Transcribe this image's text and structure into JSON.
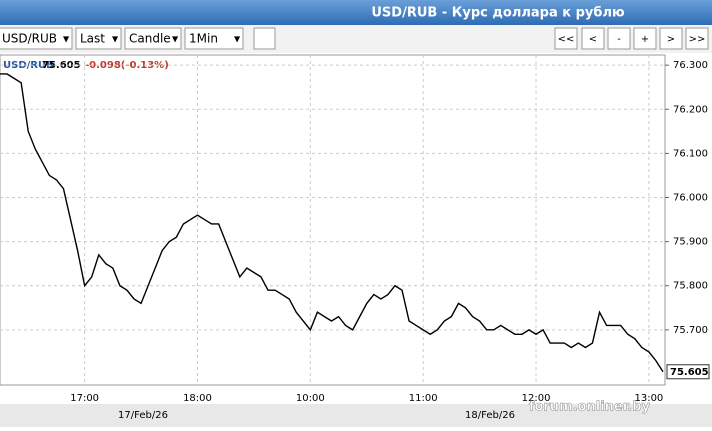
{
  "header": {
    "title": "USD/RUB - Курс доллара к рублю"
  },
  "toolbar": {
    "selects": [
      "USD/RUB",
      "Last",
      "Candle",
      "1Min"
    ],
    "buttons": [
      "<<",
      "<",
      "-",
      "+",
      ">",
      ">>"
    ]
  },
  "watermark": "forum.onliner.by",
  "chart_data": {
    "type": "line",
    "symbol": "USD/RUB",
    "last": 75.605,
    "change": "-0.098(-0.13%)",
    "categories": [
      null,
      null,
      null,
      null,
      null,
      null,
      null,
      null,
      null,
      null,
      null,
      null,
      "17:00",
      null,
      null,
      null,
      null,
      null,
      null,
      null,
      null,
      null,
      null,
      null,
      null,
      null,
      null,
      null,
      "18:00",
      null,
      null,
      null,
      null,
      null,
      null,
      null,
      null,
      null,
      null,
      null,
      null,
      null,
      null,
      null,
      "10:00",
      null,
      null,
      null,
      null,
      null,
      null,
      null,
      null,
      null,
      null,
      null,
      null,
      null,
      null,
      null,
      "11:00",
      null,
      null,
      null,
      null,
      null,
      null,
      null,
      null,
      null,
      null,
      null,
      null,
      null,
      null,
      null,
      "12:00",
      null,
      null,
      null,
      null,
      null,
      null,
      null,
      null,
      null,
      null,
      null,
      null,
      null,
      null,
      null,
      "13:00",
      null,
      null
    ],
    "date_labels": [
      "17/Feb/26",
      "18/Feb/26"
    ],
    "series": [
      {
        "name": "USD/RUB",
        "color": "#000000",
        "values": [
          76.28,
          76.28,
          76.27,
          76.26,
          76.15,
          76.11,
          76.08,
          76.05,
          76.04,
          76.02,
          75.95,
          75.88,
          75.8,
          75.82,
          75.87,
          75.85,
          75.84,
          75.8,
          75.79,
          75.77,
          75.76,
          75.8,
          75.84,
          75.88,
          75.9,
          75.91,
          75.94,
          75.95,
          75.96,
          75.95,
          75.94,
          75.94,
          75.9,
          75.86,
          75.82,
          75.84,
          75.83,
          75.82,
          75.79,
          75.79,
          75.78,
          75.77,
          75.74,
          75.72,
          75.7,
          75.74,
          75.73,
          75.72,
          75.73,
          75.71,
          75.7,
          75.73,
          75.76,
          75.78,
          75.77,
          75.78,
          75.8,
          75.79,
          75.72,
          75.71,
          75.7,
          75.69,
          75.7,
          75.72,
          75.73,
          75.76,
          75.75,
          75.73,
          75.72,
          75.7,
          75.7,
          75.71,
          75.7,
          75.69,
          75.69,
          75.7,
          75.69,
          75.7,
          75.67,
          75.67,
          75.67,
          75.66,
          75.67,
          75.66,
          75.67,
          75.74,
          75.71,
          75.71,
          75.71,
          75.69,
          75.68,
          75.66,
          75.65,
          75.63,
          75.605
        ]
      }
    ],
    "ylim": [
      75.575,
      76.323
    ],
    "yticks": [
      {
        "value": 75.7,
        "label": "75.700"
      },
      {
        "value": 75.8,
        "label": "75.800"
      },
      {
        "value": 75.9,
        "label": "75.900"
      },
      {
        "value": 76.0,
        "label": "76.000"
      },
      {
        "value": 76.1,
        "label": "76.100"
      },
      {
        "value": 76.2,
        "label": "76.200"
      },
      {
        "value": 76.3,
        "label": "76.300"
      }
    ],
    "grid": true
  }
}
